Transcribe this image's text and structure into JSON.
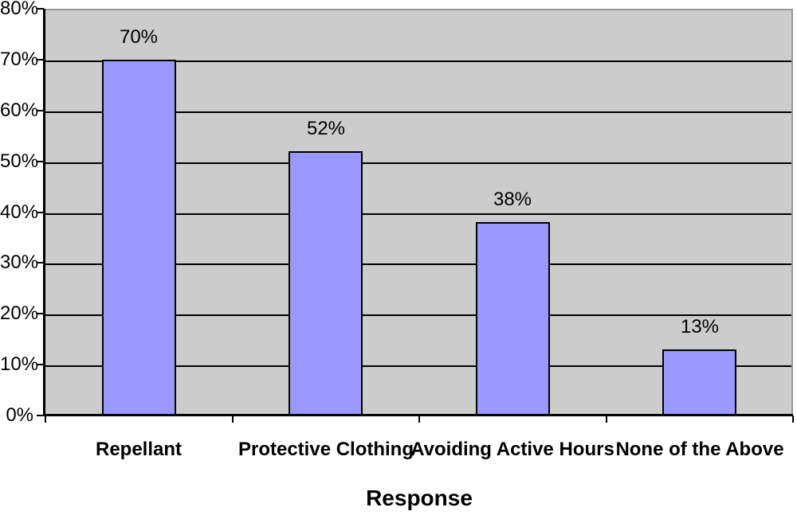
{
  "chart_data": {
    "type": "bar",
    "title": "",
    "xlabel": "Response",
    "ylabel": "",
    "categories": [
      "Repellant",
      "Protective Clothing",
      "Avoiding Active Hours",
      "None of the Above"
    ],
    "values": [
      70,
      52,
      38,
      13
    ],
    "data_labels": [
      "70%",
      "52%",
      "38%",
      "13%"
    ],
    "y_ticks": [
      "0%",
      "10%",
      "20%",
      "30%",
      "40%",
      "50%",
      "60%",
      "70%",
      "80%"
    ],
    "y_tick_values": [
      0,
      10,
      20,
      30,
      40,
      50,
      60,
      70,
      80
    ],
    "ylim": [
      0,
      80
    ],
    "grid": "horizontal",
    "legend": "none",
    "colors": {
      "bar_fill": "#9999FF",
      "bar_border": "#000000",
      "plot_background": "#CCCCCC",
      "plot_border": "#999999",
      "gridline": "#000000",
      "axis_line": "#000000",
      "text": "#000000",
      "page_background": "#FFFFFF"
    }
  }
}
